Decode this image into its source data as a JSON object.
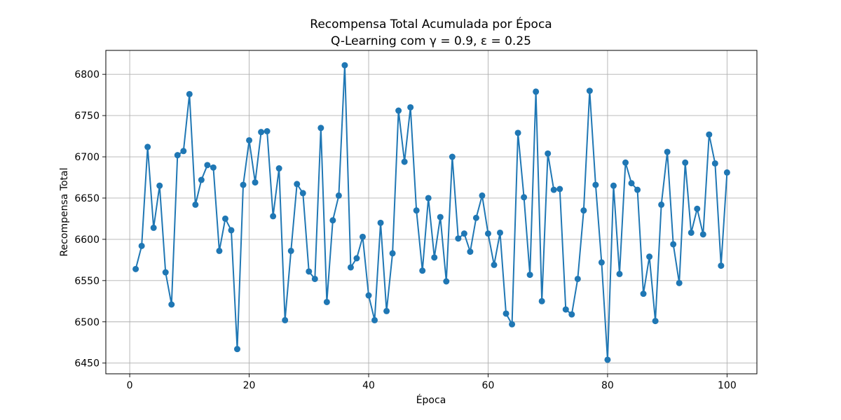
{
  "chart_data": {
    "type": "line",
    "title_line1": "Recompensa Total Acumulada por Época",
    "title_line2": "Q-Learning com γ = 0.9, ε = 0.25",
    "xlabel": "Época",
    "ylabel": "Recompensa Total",
    "xlim": [
      -4,
      105
    ],
    "ylim": [
      6437,
      6829
    ],
    "xticks": [
      0,
      20,
      40,
      60,
      80,
      100
    ],
    "yticks": [
      6450,
      6500,
      6550,
      6600,
      6650,
      6700,
      6750,
      6800
    ],
    "grid": true,
    "marker": "circle",
    "colors": {
      "line": "#1f77b4",
      "grid": "#b0b0b0",
      "axes": "#000000"
    },
    "x": [
      1,
      2,
      3,
      4,
      5,
      6,
      7,
      8,
      9,
      10,
      11,
      12,
      13,
      14,
      15,
      16,
      17,
      18,
      19,
      20,
      21,
      22,
      23,
      24,
      25,
      26,
      27,
      28,
      29,
      30,
      31,
      32,
      33,
      34,
      35,
      36,
      37,
      38,
      39,
      40,
      41,
      42,
      43,
      44,
      45,
      46,
      47,
      48,
      49,
      50,
      51,
      52,
      53,
      54,
      55,
      56,
      57,
      58,
      59,
      60,
      61,
      62,
      63,
      64,
      65,
      66,
      67,
      68,
      69,
      70,
      71,
      72,
      73,
      74,
      75,
      76,
      77,
      78,
      79,
      80,
      81,
      82,
      83,
      84,
      85,
      86,
      87,
      88,
      89,
      90,
      91,
      92,
      93,
      94,
      95,
      96,
      97,
      98,
      99,
      100
    ],
    "y": [
      6564,
      6592,
      6712,
      6614,
      6665,
      6560,
      6521,
      6702,
      6707,
      6776,
      6642,
      6672,
      6690,
      6687,
      6586,
      6625,
      6611,
      6467,
      6666,
      6720,
      6669,
      6730,
      6731,
      6628,
      6686,
      6502,
      6586,
      6667,
      6656,
      6561,
      6552,
      6735,
      6524,
      6623,
      6653,
      6811,
      6566,
      6577,
      6603,
      6532,
      6502,
      6620,
      6513,
      6583,
      6756,
      6694,
      6760,
      6635,
      6562,
      6650,
      6578,
      6627,
      6549,
      6700,
      6601,
      6607,
      6585,
      6626,
      6653,
      6607,
      6569,
      6608,
      6510,
      6497,
      6729,
      6651,
      6557,
      6779,
      6525,
      6704,
      6660,
      6661,
      6515,
      6509,
      6552,
      6635,
      6780,
      6666,
      6572,
      6454,
      6665,
      6558,
      6693,
      6668,
      6660,
      6534,
      6579,
      6501,
      6642,
      6706,
      6594,
      6547,
      6693,
      6608,
      6637,
      6606,
      6727,
      6692,
      6568,
      6681
    ]
  }
}
